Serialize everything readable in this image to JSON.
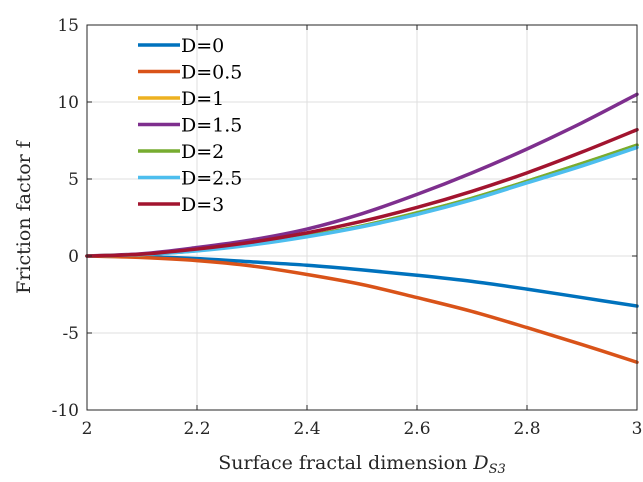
{
  "chart_data": {
    "type": "line",
    "title": "",
    "xlabel": "Surface fractal dimension",
    "xlabel_math": "D",
    "xlabel_sub": "S3",
    "ylabel": "Friction factor f",
    "xlim": [
      2,
      3
    ],
    "ylim": [
      -10,
      15
    ],
    "x_ticks": [
      2,
      2.2,
      2.4,
      2.6,
      2.8,
      3
    ],
    "x_tick_labels": [
      "2",
      "2.2",
      "2.4",
      "2.6",
      "2.8",
      "3"
    ],
    "y_ticks": [
      -10,
      -5,
      0,
      5,
      10,
      15
    ],
    "y_tick_labels": [
      "-10",
      "-5",
      "0",
      "5",
      "10",
      "15"
    ],
    "grid": true,
    "legend_position": "top-left",
    "x": [
      2.0,
      2.1,
      2.2,
      2.3,
      2.4,
      2.5,
      2.6,
      2.7,
      2.8,
      2.9,
      3.0
    ],
    "series": [
      {
        "name": "D=0",
        "color": "#0072BD",
        "values": [
          0,
          -0.04,
          -0.17,
          -0.38,
          -0.6,
          -0.9,
          -1.25,
          -1.65,
          -2.15,
          -2.7,
          -3.25
        ]
      },
      {
        "name": "D=0.5",
        "color": "#D95319",
        "values": [
          0,
          -0.1,
          -0.3,
          -0.65,
          -1.2,
          -1.85,
          -2.7,
          -3.6,
          -4.65,
          -5.75,
          -6.9
        ]
      },
      {
        "name": "D=1",
        "color": "#EDB120",
        "values": [
          0,
          0.1,
          0.35,
          0.75,
          1.3,
          1.95,
          2.8,
          3.75,
          4.85,
          6.0,
          7.2
        ]
      },
      {
        "name": "D=1.5",
        "color": "#7E2F8E",
        "values": [
          0,
          0.15,
          0.55,
          1.05,
          1.75,
          2.75,
          4.0,
          5.4,
          6.95,
          8.65,
          10.5
        ]
      },
      {
        "name": "D=2",
        "color": "#77AC30",
        "values": [
          0,
          0.1,
          0.35,
          0.75,
          1.3,
          1.95,
          2.8,
          3.75,
          4.85,
          6.0,
          7.2
        ]
      },
      {
        "name": "D=2.5",
        "color": "#4DBEEE",
        "values": [
          0,
          0.1,
          0.33,
          0.72,
          1.25,
          1.9,
          2.7,
          3.65,
          4.75,
          5.85,
          7.05
        ]
      },
      {
        "name": "D=3",
        "color": "#A2142F",
        "values": [
          0,
          0.12,
          0.45,
          0.9,
          1.5,
          2.25,
          3.15,
          4.2,
          5.4,
          6.75,
          8.2
        ]
      }
    ]
  }
}
